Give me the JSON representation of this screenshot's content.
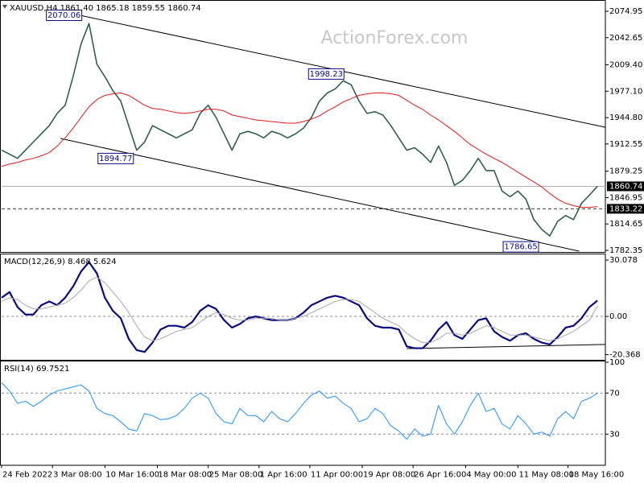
{
  "chart_data": [
    {
      "type": "line",
      "title": "XAUUSD,H4  1861.40 1865.18 1859.55 1860.74",
      "watermark": "ActionForex.com",
      "xlim": [
        0,
        76
      ],
      "ylim": [
        1780.4,
        2086.8
      ],
      "yticks": [
        2074.95,
        2042.65,
        {
          "value": 2009.4,
          "label": "2009.40"
        },
        {
          "value": 1977.1,
          "label": "1977.10"
        },
        {
          "value": 1944.8,
          "label": "1944.80"
        },
        1912.55,
        1879.25,
        1846.95,
        1814.65,
        1782.35
      ],
      "series": [
        {
          "name": "XAUUSD",
          "color": "#2f5f4f",
          "width": 1.6,
          "values": [
            1905,
            1900,
            1895,
            1905,
            1915,
            1925,
            1935,
            1950,
            1960,
            1995,
            2035,
            2060,
            2010,
            1995,
            1978,
            1965,
            1935,
            1905,
            1915,
            1935,
            1930,
            1925,
            1920,
            1925,
            1930,
            1950,
            1960,
            1945,
            1925,
            1905,
            1925,
            1928,
            1925,
            1920,
            1928,
            1925,
            1920,
            1925,
            1932,
            1945,
            1965,
            1975,
            1980,
            1990,
            1985,
            1965,
            1950,
            1952,
            1948,
            1935,
            1920,
            1905,
            1908,
            1900,
            1890,
            1910,
            1890,
            1862,
            1868,
            1880,
            1895,
            1880,
            1880,
            1855,
            1848,
            1855,
            1845,
            1820,
            1808,
            1800,
            1818,
            1825,
            1820,
            1840,
            1850,
            1860.74
          ]
        },
        {
          "name": "MA",
          "color": "#e0181b",
          "width": 1,
          "values": [
            1885,
            1888,
            1890,
            1893,
            1895,
            1898,
            1902,
            1910,
            1920,
            1932,
            1945,
            1958,
            1967,
            1972,
            1974,
            1975,
            1972,
            1966,
            1960,
            1956,
            1955,
            1953,
            1951,
            1950,
            1951,
            1953,
            1955,
            1955,
            1953,
            1948,
            1946,
            1944,
            1942,
            1941,
            1940,
            1939,
            1938,
            1938,
            1940,
            1943,
            1947,
            1953,
            1958,
            1964,
            1968,
            1972,
            1974,
            1975,
            1975,
            1974,
            1972,
            1966,
            1960,
            1955,
            1948,
            1942,
            1935,
            1928,
            1920,
            1912,
            1906,
            1900,
            1895,
            1890,
            1884,
            1878,
            1872,
            1866,
            1860,
            1852,
            1845,
            1840,
            1837,
            1835,
            1835,
            1836
          ]
        }
      ],
      "hlines": [
        {
          "value": 1860.74,
          "style": "solid",
          "color": "#b0b0b0"
        },
        {
          "value": 1833.22,
          "style": "dashed",
          "color": "#404040"
        }
      ],
      "annotations": [
        {
          "value": 2070.06,
          "x": 10.5
        },
        {
          "value": 1998.23,
          "x": 43.5
        },
        {
          "value": 1894.77,
          "x": 17
        },
        {
          "value": 1786.65,
          "x": 68
        }
      ],
      "trendlines": [
        {
          "x": [
            9.4,
            76
          ],
          "y": [
            2071,
            1933
          ]
        },
        {
          "x": [
            7.4,
            72.7
          ],
          "y": [
            1919.3,
            1781.4
          ]
        }
      ]
    },
    {
      "type": "line",
      "title": "MACD(12,26,9) 8.468 5.624",
      "xlim": [
        0,
        76
      ],
      "ylim": [
        -23.2,
        32.7
      ],
      "yticks": [
        30.078,
        {
          "value": 0,
          "label": "0.00"
        },
        -20.368
      ],
      "levels": [
        0
      ],
      "series": [
        {
          "name": "MACD",
          "color": "#0a0a80",
          "width": 2.2,
          "values": [
            10,
            13,
            5,
            1,
            1,
            6,
            8,
            6,
            10,
            16,
            24,
            29,
            23,
            10,
            3,
            -1,
            -12,
            -18,
            -19,
            -14,
            -7,
            -5,
            -5,
            -6,
            -3,
            3,
            6,
            4,
            -2,
            -6,
            -4,
            -1,
            0,
            -1,
            -2,
            -2,
            -2,
            -1,
            2,
            6,
            8,
            10,
            11,
            10,
            8,
            6,
            -1,
            -5,
            -6,
            -6,
            -7,
            -16,
            -17,
            -17,
            -13,
            -7,
            -3,
            -10,
            -12,
            -7,
            -2,
            -1,
            -8,
            -11,
            -13,
            -10,
            -9,
            -12,
            -14,
            -15,
            -11,
            -6,
            -5,
            -1,
            5,
            8.468
          ]
        },
        {
          "name": "Signal",
          "color": "#a8a8a8",
          "width": 1,
          "values": [
            8,
            10,
            9,
            6,
            4,
            4,
            5,
            6,
            7,
            10,
            14,
            19,
            21,
            18,
            13,
            8,
            2,
            -5,
            -11,
            -13,
            -12,
            -10,
            -8,
            -7,
            -6,
            -3,
            0,
            2,
            1,
            -1,
            -2,
            -2,
            -1,
            -1,
            -1,
            -2,
            -2,
            -1,
            0,
            2,
            4,
            6,
            8,
            9,
            9,
            8,
            5,
            2,
            -1,
            -3,
            -5,
            -9,
            -12,
            -14,
            -14,
            -12,
            -9,
            -9,
            -10,
            -9,
            -7,
            -5,
            -6,
            -8,
            -10,
            -10,
            -10,
            -11,
            -12,
            -13,
            -12,
            -10,
            -8,
            -5,
            -2,
            5.624
          ]
        }
      ],
      "trendlines": [
        {
          "x": [
            51,
            76
          ],
          "y": [
            -17.2,
            -15
          ]
        }
      ]
    },
    {
      "type": "line",
      "title": "RSI(14) 69.7521",
      "xlim": [
        0,
        76
      ],
      "ylim": [
        0,
        100
      ],
      "yticks": [
        100,
        70,
        30
      ],
      "levels": [
        70,
        30
      ],
      "series": [
        {
          "name": "RSI",
          "color": "#1e90ff",
          "width": 1,
          "values": [
            80,
            72,
            60,
            62,
            57,
            62,
            68,
            72,
            74,
            76,
            78,
            72,
            55,
            50,
            48,
            42,
            35,
            33,
            50,
            48,
            44,
            45,
            48,
            55,
            65,
            70,
            65,
            50,
            42,
            40,
            55,
            48,
            48,
            42,
            52,
            45,
            42,
            50,
            60,
            68,
            72,
            65,
            67,
            60,
            55,
            42,
            45,
            55,
            50,
            38,
            33,
            25,
            35,
            28,
            30,
            58,
            40,
            30,
            42,
            58,
            70,
            52,
            55,
            40,
            35,
            48,
            40,
            30,
            32,
            28,
            45,
            52,
            45,
            62,
            65,
            69.7521
          ]
        }
      ],
      "xticks": [
        {
          "value": 0,
          "label": "24 Feb 2022"
        },
        {
          "value": 6.4,
          "label": "3 Mar 08:00"
        },
        {
          "value": 13,
          "label": "10 Mar 16:00"
        },
        {
          "value": 19.6,
          "label": "18 Mar 08:00"
        },
        {
          "value": 26,
          "label": "25 Mar 08:00"
        },
        {
          "value": 32.4,
          "label": "1 Apr 16:00"
        },
        {
          "value": 38.8,
          "label": "11 Apr 00:00"
        },
        {
          "value": 45.4,
          "label": "19 Apr 08:00"
        },
        {
          "value": 51.8,
          "label": "26 Apr 16:00"
        },
        {
          "value": 58.4,
          "label": "4 May 00:00"
        },
        {
          "value": 65,
          "label": "11 May 08:00"
        },
        {
          "value": 71.3,
          "label": "18 May 16:00"
        }
      ]
    }
  ]
}
